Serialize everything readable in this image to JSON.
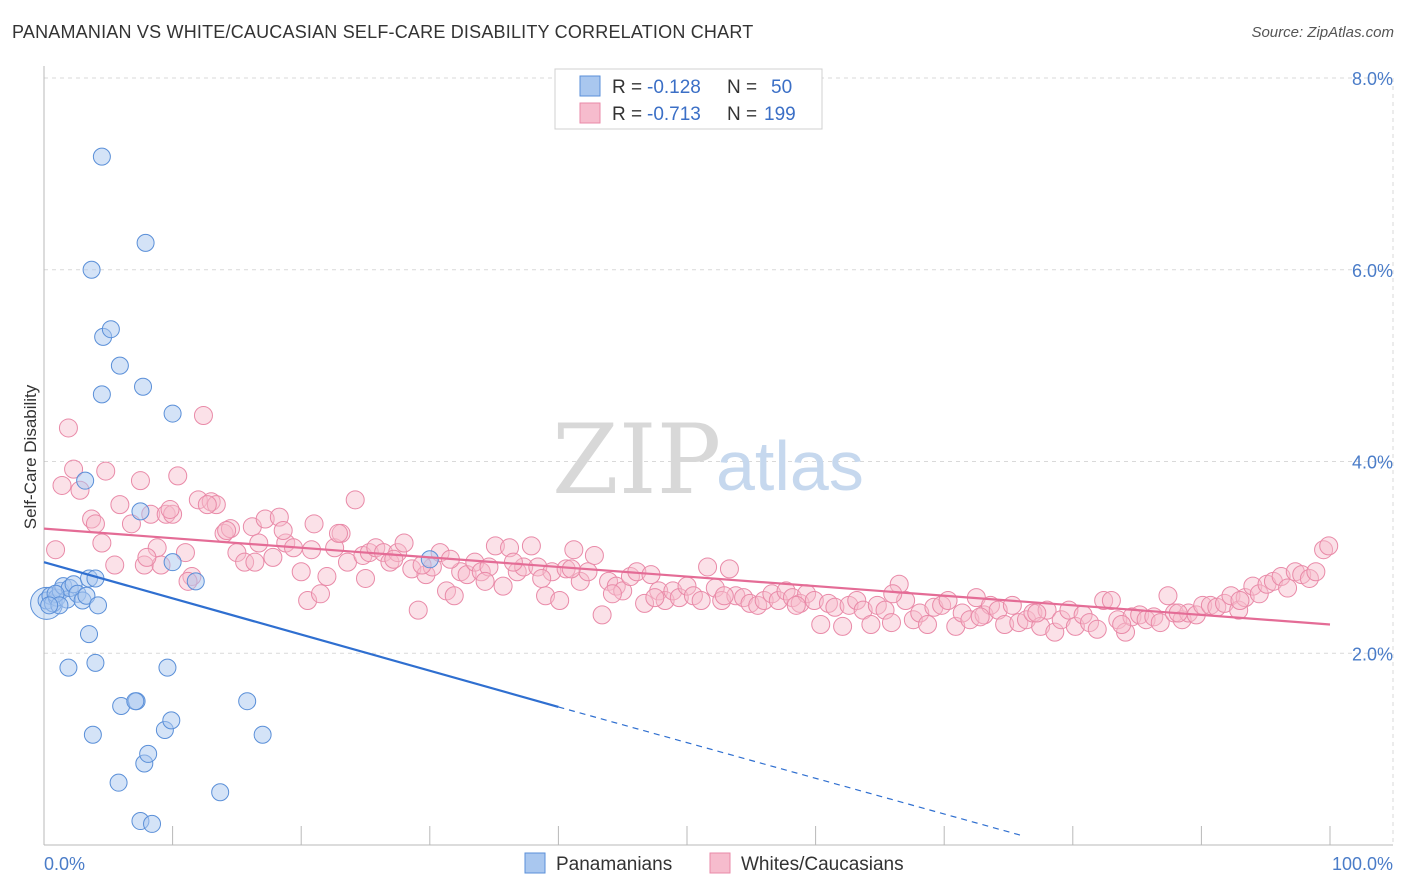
{
  "header": {
    "title": "PANAMANIAN VS WHITE/CAUCASIAN SELF-CARE DISABILITY CORRELATION CHART",
    "source": "Source: ZipAtlas.com"
  },
  "watermark": {
    "zip": "ZIP",
    "atlas": "atlas"
  },
  "colors": {
    "blue_fill": "#a9c7ef",
    "blue_stroke": "#5a8fd8",
    "blue_line": "#2f6fd0",
    "pink_fill": "#f6bccd",
    "pink_stroke": "#e98aa8",
    "pink_line": "#e46c96",
    "grid": "#d9d9d9",
    "axis_label": "#4a7cc8"
  },
  "legend": {
    "rows": [
      {
        "r_label": "R =",
        "r_value": "-0.128",
        "n_label": "N =",
        "n_value": "50"
      },
      {
        "r_label": "R =",
        "r_value": "-0.713",
        "n_label": "N =",
        "n_value": "199"
      }
    ]
  },
  "bottom_legend": {
    "series1": "Panamanians",
    "series2": "Whites/Caucasians"
  },
  "chart_data": {
    "type": "scatter",
    "title": "PANAMANIAN VS WHITE/CAUCASIAN SELF-CARE DISABILITY CORRELATION CHART",
    "xlabel": "",
    "ylabel": "Self-Care Disability",
    "xlim": [
      0,
      100
    ],
    "ylim": [
      0,
      8.0
    ],
    "x_ticks": [
      {
        "value": 0,
        "label": "0.0%"
      },
      {
        "value": 100,
        "label": "100.0%"
      }
    ],
    "y_ticks": [
      {
        "value": 2.0,
        "label": "2.0%"
      },
      {
        "value": 4.0,
        "label": "4.0%"
      },
      {
        "value": 6.0,
        "label": "6.0%"
      },
      {
        "value": 8.0,
        "label": "8.0%"
      }
    ],
    "series": [
      {
        "name": "Panamanians",
        "color": "#5a8fd8",
        "trend": {
          "x0": 0,
          "y0": 2.95,
          "x1": 40,
          "y1": 1.44,
          "dash_to_x": 76,
          "dash_to_y": 0.1
        },
        "points": [
          [
            0.2,
            2.55
          ],
          [
            0.5,
            2.6
          ],
          [
            0.7,
            2.52
          ],
          [
            1.0,
            2.58
          ],
          [
            1.3,
            2.65
          ],
          [
            1.5,
            2.7
          ],
          [
            1.8,
            2.56
          ],
          [
            2.0,
            2.68
          ],
          [
            2.3,
            2.72
          ],
          [
            2.6,
            2.62
          ],
          [
            3.0,
            2.55
          ],
          [
            3.3,
            2.6
          ],
          [
            0.9,
            2.62
          ],
          [
            1.2,
            2.5
          ],
          [
            0.4,
            2.5
          ],
          [
            3.5,
            2.2
          ],
          [
            4.0,
            1.9
          ],
          [
            1.9,
            1.85
          ],
          [
            3.2,
            3.8
          ],
          [
            3.5,
            2.78
          ],
          [
            4.2,
            2.5
          ],
          [
            4.0,
            2.78
          ],
          [
            3.8,
            1.15
          ],
          [
            5.8,
            0.65
          ],
          [
            6.0,
            1.45
          ],
          [
            7.5,
            0.25
          ],
          [
            8.4,
            0.22
          ],
          [
            7.8,
            0.85
          ],
          [
            8.1,
            0.95
          ],
          [
            7.2,
            1.5
          ],
          [
            7.1,
            1.5
          ],
          [
            9.4,
            1.2
          ],
          [
            9.6,
            1.85
          ],
          [
            9.9,
            1.3
          ],
          [
            13.7,
            0.55
          ],
          [
            15.8,
            1.5
          ],
          [
            17.0,
            1.15
          ],
          [
            4.5,
            4.7
          ],
          [
            4.6,
            5.3
          ],
          [
            5.2,
            5.38
          ],
          [
            5.9,
            5.0
          ],
          [
            7.7,
            4.78
          ],
          [
            10.0,
            4.5
          ],
          [
            3.7,
            6.0
          ],
          [
            4.5,
            7.18
          ],
          [
            7.9,
            6.28
          ],
          [
            7.5,
            3.48
          ],
          [
            10.0,
            2.95
          ],
          [
            11.8,
            2.75
          ],
          [
            30.0,
            2.98
          ]
        ]
      },
      {
        "name": "Whites/Caucasians",
        "color": "#e98aa8",
        "trend": {
          "x0": 0,
          "y0": 3.3,
          "x1": 100,
          "y1": 2.3
        },
        "points": [
          [
            0.9,
            3.08
          ],
          [
            1.4,
            3.75
          ],
          [
            1.9,
            4.35
          ],
          [
            2.3,
            3.92
          ],
          [
            2.8,
            3.7
          ],
          [
            3.7,
            3.4
          ],
          [
            4.0,
            3.35
          ],
          [
            4.5,
            3.15
          ],
          [
            4.8,
            3.9
          ],
          [
            5.5,
            2.92
          ],
          [
            5.9,
            3.55
          ],
          [
            6.8,
            3.35
          ],
          [
            7.5,
            3.8
          ],
          [
            7.8,
            2.92
          ],
          [
            8.3,
            3.45
          ],
          [
            8.8,
            3.1
          ],
          [
            9.1,
            2.92
          ],
          [
            9.5,
            3.45
          ],
          [
            10.0,
            3.45
          ],
          [
            10.4,
            3.85
          ],
          [
            11.0,
            3.05
          ],
          [
            11.5,
            2.8
          ],
          [
            12.0,
            3.6
          ],
          [
            12.4,
            4.48
          ],
          [
            13.0,
            3.58
          ],
          [
            13.4,
            3.55
          ],
          [
            14.0,
            3.25
          ],
          [
            14.5,
            3.3
          ],
          [
            15.0,
            3.05
          ],
          [
            15.6,
            2.95
          ],
          [
            16.2,
            3.32
          ],
          [
            16.7,
            3.15
          ],
          [
            17.2,
            3.4
          ],
          [
            17.8,
            3.0
          ],
          [
            18.3,
            3.42
          ],
          [
            18.8,
            3.15
          ],
          [
            19.4,
            3.1
          ],
          [
            20.0,
            2.85
          ],
          [
            20.5,
            2.55
          ],
          [
            21.0,
            3.35
          ],
          [
            21.5,
            2.62
          ],
          [
            22.0,
            2.8
          ],
          [
            22.6,
            3.1
          ],
          [
            23.1,
            3.25
          ],
          [
            23.6,
            2.95
          ],
          [
            24.2,
            3.6
          ],
          [
            24.8,
            3.02
          ],
          [
            25.3,
            3.05
          ],
          [
            25.8,
            3.1
          ],
          [
            26.4,
            3.05
          ],
          [
            26.9,
            2.95
          ],
          [
            27.5,
            3.05
          ],
          [
            28.0,
            3.15
          ],
          [
            28.6,
            2.88
          ],
          [
            29.1,
            2.45
          ],
          [
            29.7,
            2.82
          ],
          [
            30.2,
            2.9
          ],
          [
            30.8,
            3.05
          ],
          [
            31.3,
            2.65
          ],
          [
            31.9,
            2.6
          ],
          [
            32.4,
            2.85
          ],
          [
            32.9,
            2.82
          ],
          [
            33.5,
            2.95
          ],
          [
            34.0,
            2.85
          ],
          [
            34.6,
            2.9
          ],
          [
            35.1,
            3.12
          ],
          [
            35.7,
            2.7
          ],
          [
            36.2,
            3.1
          ],
          [
            36.8,
            2.85
          ],
          [
            37.3,
            2.9
          ],
          [
            37.9,
            3.12
          ],
          [
            38.4,
            2.9
          ],
          [
            39.0,
            2.6
          ],
          [
            39.5,
            2.85
          ],
          [
            40.1,
            2.55
          ],
          [
            40.6,
            2.88
          ],
          [
            41.2,
            3.08
          ],
          [
            41.7,
            2.75
          ],
          [
            42.3,
            2.85
          ],
          [
            42.8,
            3.02
          ],
          [
            43.4,
            2.4
          ],
          [
            43.9,
            2.75
          ],
          [
            44.5,
            2.7
          ],
          [
            45.0,
            2.65
          ],
          [
            45.6,
            2.8
          ],
          [
            46.1,
            2.85
          ],
          [
            46.7,
            2.52
          ],
          [
            47.2,
            2.82
          ],
          [
            47.8,
            2.65
          ],
          [
            48.3,
            2.55
          ],
          [
            48.9,
            2.65
          ],
          [
            49.4,
            2.58
          ],
          [
            50.0,
            2.7
          ],
          [
            50.5,
            2.6
          ],
          [
            51.1,
            2.55
          ],
          [
            51.6,
            2.9
          ],
          [
            52.2,
            2.68
          ],
          [
            52.7,
            2.55
          ],
          [
            53.3,
            2.88
          ],
          [
            53.8,
            2.6
          ],
          [
            54.4,
            2.58
          ],
          [
            54.9,
            2.52
          ],
          [
            55.5,
            2.5
          ],
          [
            56.0,
            2.55
          ],
          [
            56.6,
            2.62
          ],
          [
            57.1,
            2.55
          ],
          [
            57.7,
            2.65
          ],
          [
            58.2,
            2.58
          ],
          [
            58.8,
            2.52
          ],
          [
            59.3,
            2.62
          ],
          [
            59.9,
            2.55
          ],
          [
            60.4,
            2.3
          ],
          [
            61.0,
            2.52
          ],
          [
            61.5,
            2.48
          ],
          [
            62.1,
            2.28
          ],
          [
            62.6,
            2.5
          ],
          [
            63.2,
            2.55
          ],
          [
            63.7,
            2.45
          ],
          [
            64.3,
            2.3
          ],
          [
            64.8,
            2.5
          ],
          [
            65.4,
            2.45
          ],
          [
            65.9,
            2.32
          ],
          [
            66.5,
            2.72
          ],
          [
            67.0,
            2.55
          ],
          [
            67.6,
            2.35
          ],
          [
            68.1,
            2.42
          ],
          [
            68.7,
            2.3
          ],
          [
            69.2,
            2.48
          ],
          [
            69.8,
            2.5
          ],
          [
            70.3,
            2.55
          ],
          [
            70.9,
            2.28
          ],
          [
            71.4,
            2.42
          ],
          [
            72.0,
            2.35
          ],
          [
            72.5,
            2.58
          ],
          [
            73.1,
            2.4
          ],
          [
            73.6,
            2.5
          ],
          [
            74.2,
            2.45
          ],
          [
            74.7,
            2.3
          ],
          [
            75.3,
            2.5
          ],
          [
            75.8,
            2.32
          ],
          [
            76.4,
            2.35
          ],
          [
            76.9,
            2.42
          ],
          [
            77.5,
            2.28
          ],
          [
            78.0,
            2.45
          ],
          [
            78.6,
            2.22
          ],
          [
            79.1,
            2.35
          ],
          [
            79.7,
            2.45
          ],
          [
            80.2,
            2.28
          ],
          [
            80.8,
            2.4
          ],
          [
            81.3,
            2.32
          ],
          [
            81.9,
            2.25
          ],
          [
            82.4,
            2.55
          ],
          [
            83.0,
            2.55
          ],
          [
            83.5,
            2.35
          ],
          [
            84.1,
            2.22
          ],
          [
            84.6,
            2.38
          ],
          [
            85.2,
            2.4
          ],
          [
            85.7,
            2.35
          ],
          [
            86.3,
            2.38
          ],
          [
            86.8,
            2.32
          ],
          [
            87.4,
            2.6
          ],
          [
            87.9,
            2.42
          ],
          [
            88.5,
            2.35
          ],
          [
            89.0,
            2.42
          ],
          [
            89.6,
            2.4
          ],
          [
            90.1,
            2.5
          ],
          [
            90.7,
            2.5
          ],
          [
            91.2,
            2.48
          ],
          [
            91.8,
            2.52
          ],
          [
            92.3,
            2.6
          ],
          [
            92.9,
            2.45
          ],
          [
            93.4,
            2.58
          ],
          [
            94.0,
            2.7
          ],
          [
            94.5,
            2.62
          ],
          [
            95.1,
            2.72
          ],
          [
            95.6,
            2.75
          ],
          [
            96.2,
            2.8
          ],
          [
            96.7,
            2.68
          ],
          [
            97.3,
            2.85
          ],
          [
            97.8,
            2.82
          ],
          [
            98.4,
            2.78
          ],
          [
            98.9,
            2.85
          ],
          [
            99.5,
            3.08
          ],
          [
            99.9,
            3.12
          ],
          [
            66.0,
            2.62
          ],
          [
            72.8,
            2.38
          ],
          [
            77.2,
            2.42
          ],
          [
            83.8,
            2.3
          ],
          [
            88.2,
            2.42
          ],
          [
            93.0,
            2.55
          ],
          [
            58.5,
            2.5
          ],
          [
            52.9,
            2.6
          ],
          [
            47.5,
            2.58
          ],
          [
            44.2,
            2.62
          ],
          [
            41.0,
            2.88
          ],
          [
            38.7,
            2.78
          ],
          [
            36.5,
            2.95
          ],
          [
            34.3,
            2.75
          ],
          [
            31.6,
            2.98
          ],
          [
            29.4,
            2.92
          ],
          [
            27.2,
            2.98
          ],
          [
            25.0,
            2.78
          ],
          [
            22.9,
            3.25
          ],
          [
            20.8,
            3.08
          ],
          [
            18.6,
            3.28
          ],
          [
            16.4,
            2.95
          ],
          [
            14.2,
            3.28
          ],
          [
            12.7,
            3.55
          ],
          [
            11.2,
            2.75
          ],
          [
            9.8,
            3.5
          ],
          [
            8.0,
            3.0
          ]
        ]
      }
    ]
  }
}
